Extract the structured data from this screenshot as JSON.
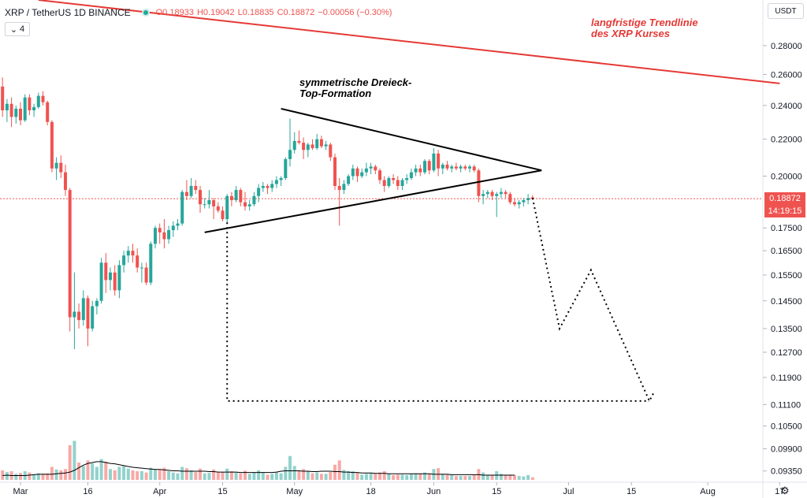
{
  "header": {
    "symbol": "XRP / TetherUS  1D  BINANCE",
    "open": "O0.18933",
    "high": "H0.19042",
    "low": "L0.18835",
    "close": "C0.18872",
    "change": "−0.00056 (−0.30%)",
    "indicator_count": "4",
    "currency_button": "USDT",
    "last_price": "0.18872",
    "countdown": "14:19:15"
  },
  "annotations": {
    "trendline_label_1": "langfristige Trendlinie",
    "trendline_label_2": "des XRP Kurses",
    "pattern_label_1": "symmetrische Dreieck-",
    "pattern_label_2": "Top-Formation"
  },
  "icons": {
    "settings": "gear-icon",
    "indicator_toggle": "chevron-icon"
  },
  "colors": {
    "up": "#26a69a",
    "down": "#ef5350",
    "trendline": "#e53935"
  },
  "chart_data": {
    "type": "candlestick",
    "title": "",
    "y_scale": "log",
    "ylim": [
      0.0925,
      0.315
    ],
    "y_ticks": [
      "0.28000",
      "0.26000",
      "0.24000",
      "0.22000",
      "0.20000",
      "0.17500",
      "0.16500",
      "0.15500",
      "0.14500",
      "0.13500",
      "0.12700",
      "0.11900",
      "0.11100",
      "0.10500",
      "0.09900",
      "0.09350"
    ],
    "x_ticks": [
      "Mar",
      "16",
      "Apr",
      "15",
      "May",
      "18",
      "Jun",
      "15",
      "Jul",
      "15",
      "Aug",
      "17"
    ],
    "x_tick_dates": [
      "2020-03-01",
      "2020-03-16",
      "2020-04-01",
      "2020-04-15",
      "2020-05-01",
      "2020-05-18",
      "2020-06-01",
      "2020-06-15",
      "2020-07-01",
      "2020-07-15",
      "2020-08-01",
      "2020-08-17"
    ],
    "candles": {
      "columns": [
        "date",
        "open",
        "high",
        "low",
        "close",
        "volume"
      ],
      "rows": [
        [
          "2020-02-26",
          0.252,
          0.258,
          0.233,
          0.237,
          22
        ],
        [
          "2020-02-27",
          0.237,
          0.244,
          0.23,
          0.241,
          18
        ],
        [
          "2020-02-28",
          0.241,
          0.245,
          0.227,
          0.233,
          20
        ],
        [
          "2020-02-29",
          0.233,
          0.24,
          0.229,
          0.238,
          14
        ],
        [
          "2020-03-01",
          0.238,
          0.242,
          0.228,
          0.231,
          16
        ],
        [
          "2020-03-02",
          0.231,
          0.247,
          0.23,
          0.245,
          20
        ],
        [
          "2020-03-03",
          0.245,
          0.247,
          0.234,
          0.237,
          17
        ],
        [
          "2020-03-04",
          0.237,
          0.241,
          0.233,
          0.239,
          12
        ],
        [
          "2020-03-05",
          0.239,
          0.248,
          0.238,
          0.246,
          15
        ],
        [
          "2020-03-06",
          0.246,
          0.249,
          0.24,
          0.242,
          14
        ],
        [
          "2020-03-07",
          0.242,
          0.243,
          0.228,
          0.23,
          15
        ],
        [
          "2020-03-08",
          0.23,
          0.231,
          0.202,
          0.204,
          30
        ],
        [
          "2020-03-09",
          0.204,
          0.21,
          0.198,
          0.207,
          24
        ],
        [
          "2020-03-10",
          0.207,
          0.211,
          0.199,
          0.202,
          22
        ],
        [
          "2020-03-11",
          0.202,
          0.206,
          0.19,
          0.193,
          25
        ],
        [
          "2020-03-12",
          0.193,
          0.194,
          0.134,
          0.139,
          80
        ],
        [
          "2020-03-13",
          0.139,
          0.156,
          0.128,
          0.141,
          90
        ],
        [
          "2020-03-14",
          0.141,
          0.144,
          0.135,
          0.138,
          40
        ],
        [
          "2020-03-15",
          0.138,
          0.149,
          0.136,
          0.146,
          32
        ],
        [
          "2020-03-16",
          0.146,
          0.147,
          0.129,
          0.135,
          45
        ],
        [
          "2020-03-17",
          0.135,
          0.145,
          0.134,
          0.143,
          38
        ],
        [
          "2020-03-18",
          0.143,
          0.146,
          0.14,
          0.145,
          30
        ],
        [
          "2020-03-19",
          0.145,
          0.162,
          0.144,
          0.16,
          48
        ],
        [
          "2020-03-20",
          0.16,
          0.164,
          0.148,
          0.153,
          42
        ],
        [
          "2020-03-21",
          0.153,
          0.158,
          0.149,
          0.156,
          25
        ],
        [
          "2020-03-22",
          0.156,
          0.159,
          0.147,
          0.149,
          22
        ],
        [
          "2020-03-23",
          0.149,
          0.161,
          0.146,
          0.159,
          30
        ],
        [
          "2020-03-24",
          0.159,
          0.165,
          0.156,
          0.163,
          32
        ],
        [
          "2020-03-25",
          0.163,
          0.167,
          0.16,
          0.165,
          26
        ],
        [
          "2020-03-26",
          0.165,
          0.168,
          0.16,
          0.163,
          22
        ],
        [
          "2020-03-27",
          0.163,
          0.166,
          0.156,
          0.158,
          20
        ],
        [
          "2020-03-28",
          0.158,
          0.16,
          0.152,
          0.158,
          20
        ],
        [
          "2020-03-29",
          0.158,
          0.16,
          0.151,
          0.152,
          17
        ],
        [
          "2020-03-30",
          0.152,
          0.169,
          0.151,
          0.168,
          28
        ],
        [
          "2020-03-31",
          0.168,
          0.176,
          0.166,
          0.175,
          25
        ],
        [
          "2020-04-01",
          0.175,
          0.177,
          0.168,
          0.173,
          24
        ],
        [
          "2020-04-02",
          0.173,
          0.179,
          0.166,
          0.17,
          28
        ],
        [
          "2020-04-03",
          0.17,
          0.176,
          0.168,
          0.174,
          20
        ],
        [
          "2020-04-04",
          0.174,
          0.178,
          0.171,
          0.176,
          17
        ],
        [
          "2020-04-05",
          0.176,
          0.179,
          0.174,
          0.177,
          15
        ],
        [
          "2020-04-06",
          0.177,
          0.193,
          0.176,
          0.192,
          30
        ],
        [
          "2020-04-07",
          0.192,
          0.198,
          0.188,
          0.19,
          27
        ],
        [
          "2020-04-08",
          0.19,
          0.199,
          0.189,
          0.195,
          22
        ],
        [
          "2020-04-09",
          0.195,
          0.198,
          0.191,
          0.193,
          18
        ],
        [
          "2020-04-10",
          0.193,
          0.195,
          0.182,
          0.186,
          26
        ],
        [
          "2020-04-11",
          0.186,
          0.189,
          0.184,
          0.186,
          15
        ],
        [
          "2020-04-12",
          0.186,
          0.193,
          0.184,
          0.188,
          16
        ],
        [
          "2020-04-13",
          0.188,
          0.189,
          0.179,
          0.185,
          24
        ],
        [
          "2020-04-14",
          0.185,
          0.187,
          0.182,
          0.183,
          17
        ],
        [
          "2020-04-15",
          0.183,
          0.185,
          0.178,
          0.179,
          18
        ],
        [
          "2020-04-16",
          0.179,
          0.191,
          0.177,
          0.19,
          26
        ],
        [
          "2020-04-17",
          0.19,
          0.192,
          0.185,
          0.188,
          20
        ],
        [
          "2020-04-18",
          0.188,
          0.195,
          0.187,
          0.193,
          17
        ],
        [
          "2020-04-19",
          0.193,
          0.194,
          0.185,
          0.187,
          15
        ],
        [
          "2020-04-20",
          0.187,
          0.192,
          0.183,
          0.185,
          21
        ],
        [
          "2020-04-21",
          0.185,
          0.188,
          0.183,
          0.186,
          14
        ],
        [
          "2020-04-22",
          0.186,
          0.192,
          0.185,
          0.19,
          17
        ],
        [
          "2020-04-23",
          0.19,
          0.196,
          0.187,
          0.194,
          22
        ],
        [
          "2020-04-24",
          0.194,
          0.197,
          0.192,
          0.195,
          17
        ],
        [
          "2020-04-25",
          0.195,
          0.196,
          0.191,
          0.194,
          12
        ],
        [
          "2020-04-26",
          0.194,
          0.198,
          0.192,
          0.196,
          14
        ],
        [
          "2020-04-27",
          0.196,
          0.2,
          0.194,
          0.198,
          17
        ],
        [
          "2020-04-28",
          0.198,
          0.2,
          0.195,
          0.199,
          15
        ],
        [
          "2020-04-29",
          0.199,
          0.21,
          0.198,
          0.209,
          30
        ],
        [
          "2020-04-30",
          0.209,
          0.232,
          0.205,
          0.214,
          55
        ],
        [
          "2020-05-01",
          0.214,
          0.224,
          0.212,
          0.219,
          32
        ],
        [
          "2020-05-02",
          0.219,
          0.225,
          0.217,
          0.218,
          22
        ],
        [
          "2020-05-03",
          0.218,
          0.221,
          0.209,
          0.214,
          25
        ],
        [
          "2020-05-04",
          0.214,
          0.218,
          0.21,
          0.217,
          20
        ],
        [
          "2020-05-05",
          0.217,
          0.22,
          0.214,
          0.215,
          15
        ],
        [
          "2020-05-06",
          0.215,
          0.223,
          0.214,
          0.22,
          17
        ],
        [
          "2020-05-07",
          0.22,
          0.222,
          0.215,
          0.216,
          14
        ],
        [
          "2020-05-08",
          0.216,
          0.219,
          0.214,
          0.217,
          14
        ],
        [
          "2020-05-09",
          0.217,
          0.218,
          0.208,
          0.21,
          18
        ],
        [
          "2020-05-10",
          0.21,
          0.212,
          0.193,
          0.195,
          35
        ],
        [
          "2020-05-11",
          0.195,
          0.199,
          0.176,
          0.193,
          45
        ],
        [
          "2020-05-12",
          0.193,
          0.198,
          0.191,
          0.196,
          23
        ],
        [
          "2020-05-13",
          0.196,
          0.201,
          0.195,
          0.2,
          20
        ],
        [
          "2020-05-14",
          0.2,
          0.206,
          0.198,
          0.204,
          20
        ],
        [
          "2020-05-15",
          0.204,
          0.205,
          0.197,
          0.2,
          17
        ],
        [
          "2020-05-16",
          0.2,
          0.204,
          0.199,
          0.202,
          12
        ],
        [
          "2020-05-17",
          0.202,
          0.207,
          0.2,
          0.204,
          14
        ],
        [
          "2020-05-18",
          0.204,
          0.207,
          0.201,
          0.205,
          15
        ],
        [
          "2020-05-19",
          0.205,
          0.206,
          0.201,
          0.203,
          14
        ],
        [
          "2020-05-20",
          0.203,
          0.204,
          0.196,
          0.198,
          17
        ],
        [
          "2020-05-21",
          0.198,
          0.2,
          0.192,
          0.195,
          20
        ],
        [
          "2020-05-22",
          0.195,
          0.2,
          0.194,
          0.199,
          14
        ],
        [
          "2020-05-23",
          0.199,
          0.201,
          0.196,
          0.198,
          11
        ],
        [
          "2020-05-24",
          0.198,
          0.2,
          0.193,
          0.195,
          12
        ],
        [
          "2020-05-25",
          0.195,
          0.199,
          0.193,
          0.198,
          12
        ],
        [
          "2020-05-26",
          0.198,
          0.201,
          0.196,
          0.199,
          11
        ],
        [
          "2020-05-27",
          0.199,
          0.204,
          0.198,
          0.202,
          14
        ],
        [
          "2020-05-28",
          0.202,
          0.206,
          0.2,
          0.204,
          15
        ],
        [
          "2020-05-29",
          0.204,
          0.206,
          0.2,
          0.202,
          14
        ],
        [
          "2020-05-30",
          0.202,
          0.209,
          0.201,
          0.208,
          17
        ],
        [
          "2020-05-31",
          0.208,
          0.209,
          0.201,
          0.203,
          14
        ],
        [
          "2020-06-01",
          0.203,
          0.215,
          0.202,
          0.212,
          25
        ],
        [
          "2020-06-02",
          0.212,
          0.214,
          0.2,
          0.204,
          27
        ],
        [
          "2020-06-03",
          0.204,
          0.207,
          0.201,
          0.206,
          14
        ],
        [
          "2020-06-04",
          0.206,
          0.208,
          0.203,
          0.204,
          12
        ],
        [
          "2020-06-05",
          0.204,
          0.206,
          0.202,
          0.205,
          11
        ],
        [
          "2020-06-06",
          0.205,
          0.207,
          0.203,
          0.204,
          9
        ],
        [
          "2020-06-07",
          0.204,
          0.206,
          0.202,
          0.205,
          9
        ],
        [
          "2020-06-08",
          0.205,
          0.206,
          0.203,
          0.204,
          9
        ],
        [
          "2020-06-09",
          0.204,
          0.206,
          0.202,
          0.205,
          9
        ],
        [
          "2020-06-10",
          0.205,
          0.206,
          0.202,
          0.203,
          11
        ],
        [
          "2020-06-11",
          0.203,
          0.204,
          0.187,
          0.19,
          25
        ],
        [
          "2020-06-12",
          0.19,
          0.193,
          0.186,
          0.191,
          17
        ],
        [
          "2020-06-13",
          0.191,
          0.193,
          0.189,
          0.192,
          11
        ],
        [
          "2020-06-14",
          0.192,
          0.193,
          0.188,
          0.19,
          11
        ],
        [
          "2020-06-15",
          0.19,
          0.192,
          0.18,
          0.191,
          20
        ],
        [
          "2020-06-16",
          0.191,
          0.194,
          0.189,
          0.192,
          14
        ],
        [
          "2020-06-17",
          0.192,
          0.193,
          0.189,
          0.191,
          11
        ],
        [
          "2020-06-18",
          0.191,
          0.192,
          0.186,
          0.187,
          12
        ],
        [
          "2020-06-19",
          0.187,
          0.189,
          0.185,
          0.186,
          11
        ],
        [
          "2020-06-20",
          0.186,
          0.188,
          0.184,
          0.187,
          9
        ],
        [
          "2020-06-21",
          0.187,
          0.189,
          0.185,
          0.188,
          8
        ],
        [
          "2020-06-22",
          0.188,
          0.191,
          0.186,
          0.189,
          11
        ],
        [
          "2020-06-23",
          0.18933,
          0.19042,
          0.18835,
          0.18872,
          6
        ]
      ]
    },
    "volume_ma": [
      10,
      11,
      10,
      10,
      10,
      10,
      11,
      12,
      13,
      13,
      13,
      13,
      14,
      15,
      16,
      18,
      22,
      28,
      34,
      38,
      40,
      42,
      42,
      40,
      38,
      37,
      35,
      33,
      31,
      29,
      28,
      27,
      26,
      25,
      24,
      24,
      23,
      22,
      21,
      21,
      20,
      20,
      20,
      20,
      20,
      20,
      19,
      19,
      18,
      18,
      18,
      18,
      18,
      17,
      17,
      17,
      17,
      17,
      17,
      17,
      17,
      18,
      20,
      21,
      21,
      21,
      21,
      20,
      20,
      19,
      19,
      20,
      20,
      20,
      19,
      19,
      18,
      18,
      17,
      17,
      16,
      16,
      16,
      15,
      15,
      15,
      14,
      14,
      14,
      14,
      14,
      14,
      14,
      14,
      14,
      14,
      13,
      13,
      13,
      13,
      12,
      12,
      12,
      12,
      12,
      12,
      12,
      11,
      11,
      11,
      11,
      11,
      11,
      11,
      11
    ],
    "annotation_lines": {
      "long_term_trendline": [
        [
          "2020-03-05",
          0.315
        ],
        [
          "2020-08-17",
          0.254
        ]
      ],
      "triangle_upper": [
        [
          "2020-04-28",
          0.238
        ],
        [
          "2020-06-25",
          0.203
        ]
      ],
      "triangle_lower": [
        [
          "2020-04-11",
          0.173
        ],
        [
          "2020-06-25",
          0.203
        ]
      ],
      "projection_path": [
        [
          "2020-06-23",
          0.189
        ],
        [
          "2020-06-29",
          0.135
        ],
        [
          "2020-07-06",
          0.157
        ],
        [
          "2020-07-19",
          0.112
        ],
        [
          "2020-07-20",
          0.1145
        ]
      ],
      "projection_base": [
        [
          "2020-04-16",
          0.1775
        ],
        [
          "2020-04-16",
          0.112
        ],
        [
          "2020-07-19",
          0.112
        ]
      ]
    }
  }
}
